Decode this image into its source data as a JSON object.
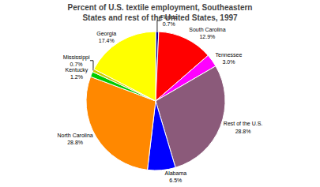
{
  "chart_data": {
    "type": "pie",
    "title": "Percent of U.S. textile employment, Southeastern\nStates and rest of the United States, 1997",
    "categories": [
      "Florida",
      "South Carolina",
      "Tennessee",
      "Rest of the U.S.",
      "Alabama",
      "North Carolina",
      "Kentucky",
      "Mississippi",
      "Georgia"
    ],
    "values": [
      0.7,
      12.9,
      3.0,
      28.8,
      6.5,
      28.8,
      1.2,
      0.7,
      17.4
    ],
    "value_labels": [
      "0.7%",
      "12.9%",
      "3.0%",
      "28.8%",
      "6.5%",
      "28.8%",
      "1.2%",
      "0.7%",
      "17.4%"
    ],
    "colors": [
      "#000099",
      "#ff0000",
      "#ff00ff",
      "#8b5a7a",
      "#0000ff",
      "#ff8800",
      "#00cc00",
      "#cccc00",
      "#ffff00"
    ],
    "data_labels": true,
    "legend": false
  }
}
